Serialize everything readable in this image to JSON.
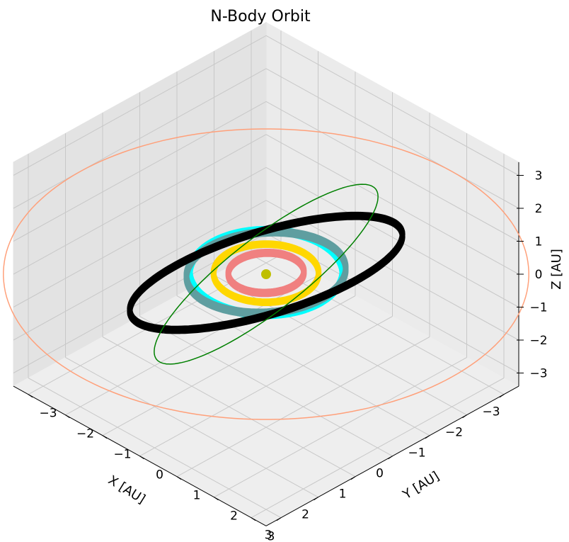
{
  "chart_data": {
    "type": "line3d",
    "title": "N-Body Orbit",
    "xlabel": "X [AU]",
    "ylabel": "Y [AU]",
    "zlabel": "Z [AU]",
    "xlim": [
      -3,
      3
    ],
    "ylim": [
      -3,
      3
    ],
    "zlim": [
      -3,
      3
    ],
    "grid": true,
    "x_ticks": [
      3,
      2,
      1,
      0,
      -1,
      -2,
      -3
    ],
    "x_tick_labels": [
      "3",
      "2",
      "1",
      "0",
      "−1",
      "−2",
      "−3"
    ],
    "y_ticks": [
      -3,
      -2,
      -1,
      0,
      1,
      2,
      3
    ],
    "y_tick_labels": [
      "−3",
      "−2",
      "−1",
      "0",
      "1",
      "2",
      "3"
    ],
    "z_ticks": [
      3,
      2,
      1,
      0,
      -1,
      -2,
      -3
    ],
    "z_tick_labels": [
      "3",
      "2",
      "1",
      "0",
      "−1",
      "−2",
      "−3"
    ],
    "central_body": {
      "x": 0,
      "y": 0,
      "z": 0,
      "color": "#bfbf00"
    },
    "orbits": [
      {
        "color": "#f08080",
        "radius": 0.72,
        "band": 0.08,
        "tilt_deg": 3
      },
      {
        "color": "#ffd700",
        "radius": 1.0,
        "band": 0.06,
        "tilt_deg": 0
      },
      {
        "color": "#00ffff",
        "radius": 1.45,
        "band": 0.1,
        "tilt_deg": 0
      },
      {
        "color": "#5f9ea0",
        "radius": 1.52,
        "band": 0.1,
        "tilt_deg": 6
      },
      {
        "color": "#000000",
        "radius": 2.75,
        "band": 0.08,
        "tilt_deg": 28
      },
      {
        "color": "#008000",
        "radius": 2.85,
        "band": 0.0,
        "tilt_deg": 70
      },
      {
        "color": "#ffa07a",
        "radius": 5.0,
        "band": 0.0,
        "tilt_deg": 0
      }
    ]
  }
}
